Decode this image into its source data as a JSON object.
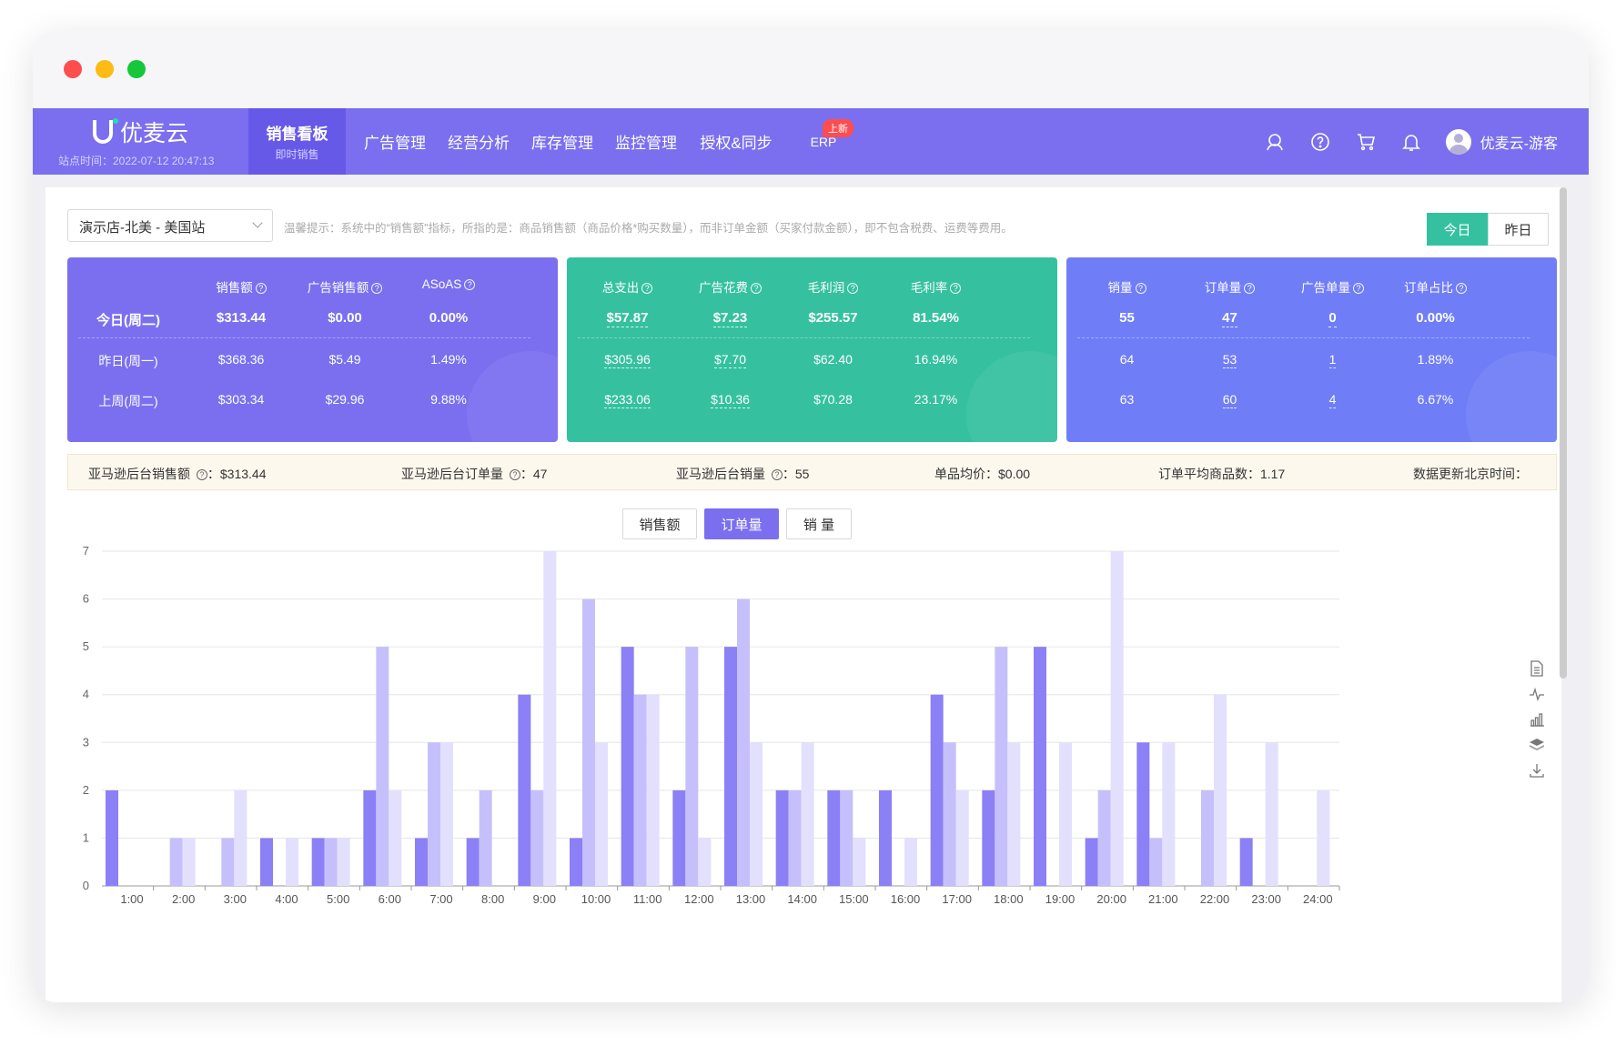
{
  "nav": {
    "brand": "优麦云",
    "site_time": "站点时间：2022-07-12 20:47:13",
    "items": [
      {
        "label": "销售看板",
        "sub": "即时销售"
      },
      {
        "label": "广告管理"
      },
      {
        "label": "经营分析"
      },
      {
        "label": "库存管理"
      },
      {
        "label": "监控管理"
      },
      {
        "label": "授权&同步"
      },
      {
        "label": "ERP",
        "badge": "上新"
      }
    ],
    "icons": [
      "service-icon",
      "help-icon",
      "cart-icon",
      "bell-icon"
    ],
    "user": "优麦云-游客"
  },
  "toolbar": {
    "store": "演示店-北美 - 美国站",
    "tip": "温馨提示：系统中的“销售额”指标，所指的是：商品销售额（商品价格*购买数量），而非订单金额（买家付款金额），即不包含税费、运费等费用。",
    "today": "今日",
    "yesterday": "昨日"
  },
  "cards": {
    "row_labels": [
      "今日(周二)",
      "昨日(周一)",
      "上周(周二)"
    ],
    "c1": {
      "headers": [
        "销售额",
        "广告销售额",
        "ASoAS"
      ],
      "rows": [
        [
          "$313.44",
          "$0.00",
          "0.00%"
        ],
        [
          "$368.36",
          "$5.49",
          "1.49%"
        ],
        [
          "$303.34",
          "$29.96",
          "9.88%"
        ]
      ]
    },
    "c2": {
      "headers": [
        "总支出",
        "广告花费",
        "毛利润",
        "毛利率"
      ],
      "rows": [
        [
          "$57.87",
          "$7.23",
          "$255.57",
          "81.54%"
        ],
        [
          "$305.96",
          "$7.70",
          "$62.40",
          "16.94%"
        ],
        [
          "$233.06",
          "$10.36",
          "$70.28",
          "23.17%"
        ]
      ]
    },
    "c3": {
      "headers": [
        "销量",
        "订单量",
        "广告单量",
        "订单占比"
      ],
      "rows": [
        [
          "55",
          "47",
          "0",
          "0.00%"
        ],
        [
          "64",
          "53",
          "1",
          "1.89%"
        ],
        [
          "63",
          "60",
          "4",
          "6.67%"
        ]
      ]
    }
  },
  "summary": {
    "amazon_sales_label": "亚马逊后台销售额",
    "amazon_sales": "：$313.44",
    "amazon_orders_label": "亚马逊后台订单量",
    "amazon_orders": "：47",
    "amazon_units_label": "亚马逊后台销量",
    "amazon_units": "：55",
    "avg_price": "单品均价：$0.00",
    "avg_items": "订单平均商品数：1.17",
    "updated": "数据更新北京时间："
  },
  "chart_tabs": [
    "销售额",
    "订单量",
    "销 量"
  ],
  "colors": {
    "primary": "#7b6ff0",
    "green": "#35c1a0",
    "blue": "#6f7ef7",
    "series1": "#8b80f5",
    "series2": "#c5c0fb",
    "series3": "#e2e0fd"
  },
  "side_tools": [
    "document-icon",
    "line-chart-icon",
    "bar-chart-icon",
    "layers-icon",
    "download-icon"
  ],
  "chart_data": {
    "type": "bar",
    "categories": [
      "1:00",
      "2:00",
      "3:00",
      "4:00",
      "5:00",
      "6:00",
      "7:00",
      "8:00",
      "9:00",
      "10:00",
      "11:00",
      "12:00",
      "13:00",
      "14:00",
      "15:00",
      "16:00",
      "17:00",
      "18:00",
      "19:00",
      "20:00",
      "21:00",
      "22:00",
      "23:00",
      "24:00"
    ],
    "series": [
      {
        "values": [
          2,
          0,
          0,
          1,
          1,
          2,
          1,
          1,
          4,
          1,
          5,
          2,
          5,
          2,
          2,
          2,
          4,
          2,
          5,
          1,
          3,
          0,
          1,
          0
        ]
      },
      {
        "values": [
          0,
          1,
          1,
          0,
          1,
          5,
          3,
          2,
          2,
          6,
          4,
          5,
          6,
          2,
          2,
          0,
          3,
          5,
          0,
          2,
          1,
          2,
          0,
          0
        ]
      },
      {
        "values": [
          0,
          1,
          2,
          1,
          1,
          2,
          3,
          0,
          7,
          3,
          4,
          1,
          3,
          3,
          1,
          1,
          2,
          3,
          3,
          7,
          3,
          4,
          3,
          2
        ]
      }
    ],
    "ylim": [
      0,
      7
    ],
    "yticks": [
      0,
      1,
      2,
      3,
      4,
      5,
      6,
      7
    ],
    "grid": true
  }
}
